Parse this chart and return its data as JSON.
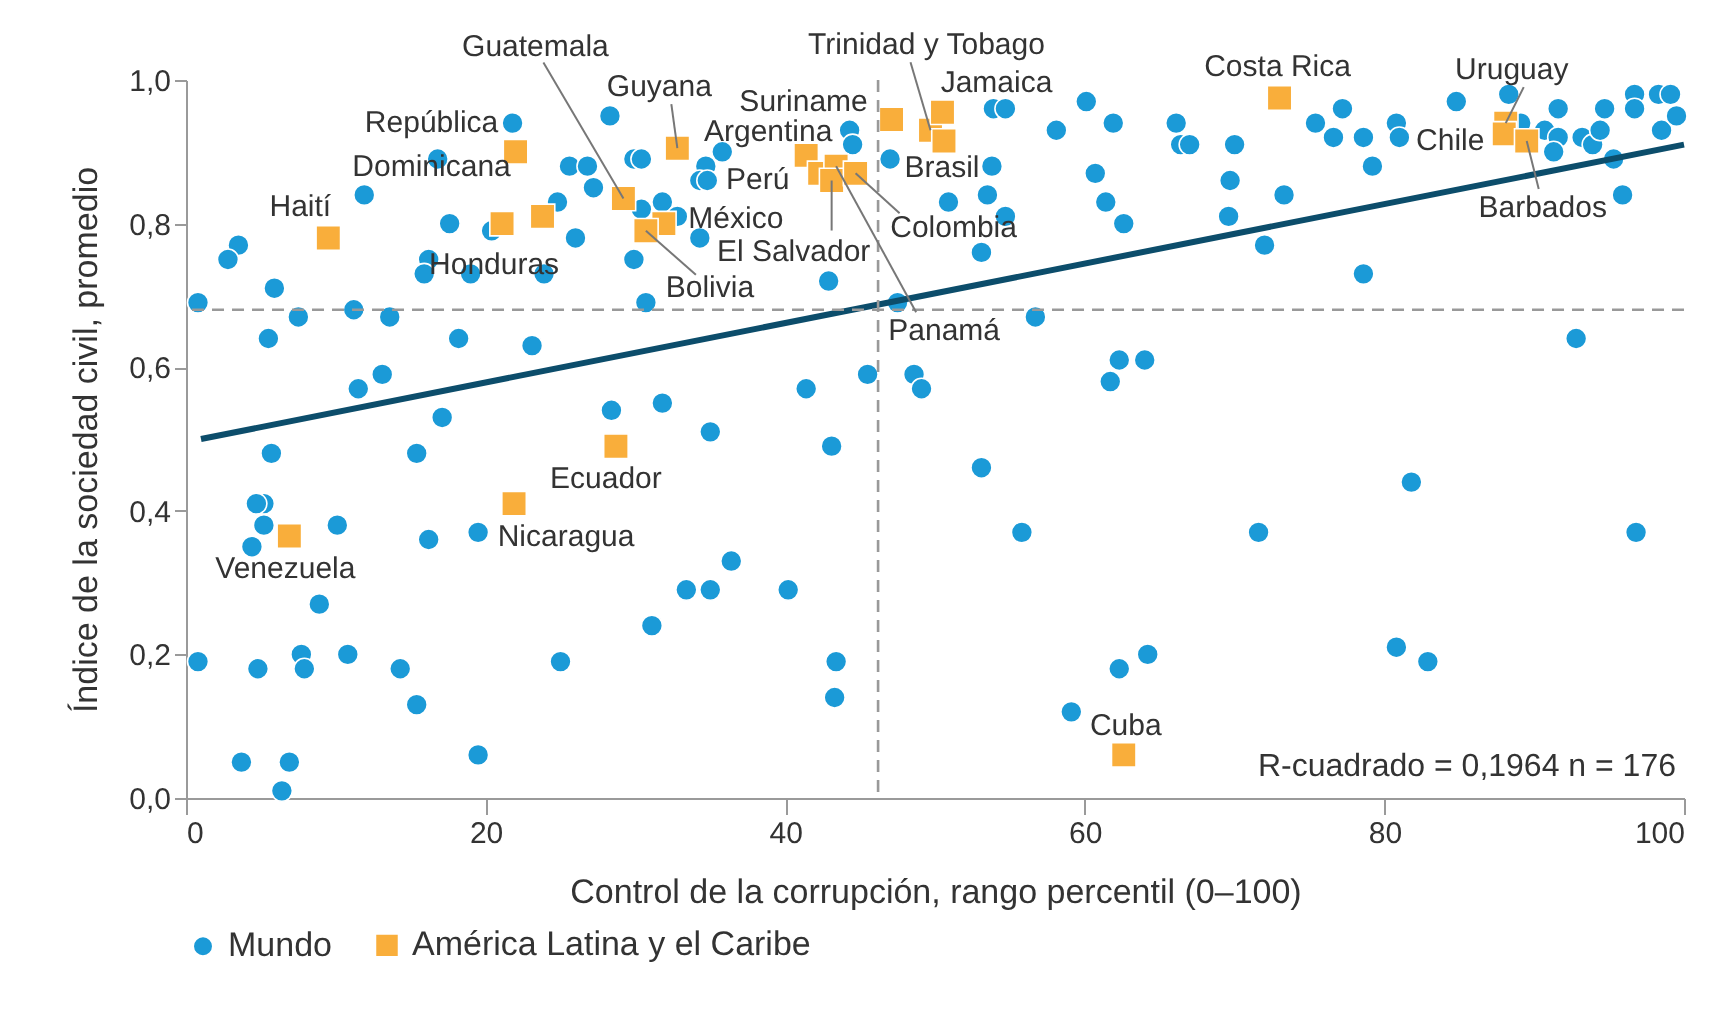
{
  "chart_data": {
    "type": "scatter",
    "xlabel": "Control de la corrupción, rango percentil (0–100)",
    "ylabel": "Índice de la sociedad civil, promedio",
    "xlim": [
      0,
      100
    ],
    "xticks": [
      0,
      20,
      40,
      60,
      80,
      100
    ],
    "ylim": [
      0,
      1
    ],
    "yticks": [
      {
        "value": 0,
        "label": "0,0"
      },
      {
        "value": 0.2,
        "label": "0,2"
      },
      {
        "value": 0.4,
        "label": "0,4"
      },
      {
        "value": 0.6,
        "label": "0,6"
      },
      {
        "value": 0.8,
        "label": "0,8"
      },
      {
        "value": 1,
        "label": "1,0"
      }
    ],
    "grid": false,
    "legend": "bottom",
    "series": [
      {
        "name": "Mundo",
        "marker": "circle",
        "color": "#1b9ad7",
        "x": [
          21.8,
          28.3,
          16.8,
          11.9,
          25.6,
          26.8,
          27.2,
          29.9,
          30.4,
          24.8,
          17.6,
          20.4,
          26.0,
          30.4,
          31.8,
          32.8,
          34.7,
          35.8,
          34.3,
          34.8,
          34.3,
          29.9,
          44.3,
          44.5,
          47.0,
          42.9,
          3.5,
          2.8,
          5.9,
          16.2,
          15.9,
          19.0,
          23.9,
          0.8,
          7.5,
          11.2,
          13.6,
          30.7,
          47.5,
          5.5,
          18.2,
          23.1,
          11.5,
          13.1,
          41.4,
          45.5,
          48.6,
          49.1,
          28.4,
          31.8,
          17.1,
          53.9,
          54.7,
          60.1,
          58.1,
          61.9,
          66.1,
          66.4,
          67.0,
          70.0,
          60.7,
          53.8,
          53.5,
          50.9,
          61.4,
          62.6,
          54.7,
          53.1,
          69.7,
          69.6,
          73.3,
          72.0,
          75.4,
          77.2,
          76.6,
          78.6,
          79.2,
          80.8,
          81.0,
          84.8,
          88.3,
          89.1,
          90.7,
          91.6,
          91.6,
          91.3,
          93.2,
          93.9,
          94.4,
          94.7,
          95.3,
          95.9,
          96.7,
          96.7,
          98.3,
          99.1,
          98.5,
          99.5,
          56.7,
          92.8,
          62.3,
          64.0,
          61.7,
          78.6,
          5.7,
          15.4,
          35.0,
          43.1,
          5.2,
          4.7,
          5.2,
          10.1,
          4.4,
          16.2,
          19.5,
          36.4,
          33.4,
          35.0,
          40.2,
          8.9,
          31.1,
          0.8,
          4.8,
          7.7,
          7.9,
          10.8,
          14.3,
          15.4,
          25.0,
          43.4,
          43.3,
          3.7,
          6.9,
          6.4,
          19.5,
          53.1,
          55.8,
          71.6,
          81.8,
          96.8,
          80.8,
          82.9,
          62.3,
          64.2,
          59.1
        ],
        "values": [
          0.94,
          0.95,
          0.89,
          0.84,
          0.88,
          0.88,
          0.85,
          0.89,
          0.89,
          0.83,
          0.8,
          0.79,
          0.78,
          0.82,
          0.83,
          0.81,
          0.88,
          0.9,
          0.86,
          0.86,
          0.78,
          0.75,
          0.93,
          0.91,
          0.89,
          0.72,
          0.77,
          0.75,
          0.71,
          0.75,
          0.73,
          0.73,
          0.73,
          0.69,
          0.67,
          0.68,
          0.67,
          0.69,
          0.69,
          0.64,
          0.64,
          0.63,
          0.57,
          0.59,
          0.57,
          0.59,
          0.59,
          0.57,
          0.54,
          0.55,
          0.53,
          0.96,
          0.96,
          0.97,
          0.93,
          0.94,
          0.94,
          0.91,
          0.91,
          0.91,
          0.87,
          0.88,
          0.84,
          0.83,
          0.83,
          0.8,
          0.81,
          0.76,
          0.86,
          0.81,
          0.84,
          0.77,
          0.94,
          0.96,
          0.92,
          0.92,
          0.88,
          0.94,
          0.92,
          0.97,
          0.98,
          0.94,
          0.93,
          0.96,
          0.92,
          0.9,
          0.92,
          0.91,
          0.93,
          0.96,
          0.89,
          0.84,
          0.98,
          0.96,
          0.98,
          0.98,
          0.93,
          0.95,
          0.67,
          0.64,
          0.61,
          0.61,
          0.58,
          0.73,
          0.48,
          0.48,
          0.51,
          0.49,
          0.41,
          0.41,
          0.38,
          0.38,
          0.35,
          0.36,
          0.37,
          0.33,
          0.29,
          0.29,
          0.29,
          0.27,
          0.24,
          0.19,
          0.18,
          0.2,
          0.18,
          0.2,
          0.18,
          0.13,
          0.19,
          0.19,
          0.14,
          0.05,
          0.05,
          0.01,
          0.06,
          0.46,
          0.37,
          0.37,
          0.44,
          0.37,
          0.21,
          0.19,
          0.18,
          0.2,
          0.12
        ]
      },
      {
        "name": "América Latina y el Caribe",
        "marker": "square",
        "color": "#f9ae3b",
        "x": [
          9.5,
          22.0,
          21.1,
          23.8,
          29.2,
          32.8,
          31.9,
          30.7,
          41.4,
          42.3,
          43.4,
          43.1,
          44.7,
          47.1,
          49.7,
          50.5,
          50.6,
          73.0,
          88.1,
          88.0,
          89.5,
          28.7,
          21.9,
          6.9,
          62.6
        ],
        "values": [
          0.78,
          0.9,
          0.8,
          0.81,
          0.835,
          0.905,
          0.8,
          0.79,
          0.895,
          0.87,
          0.88,
          0.86,
          0.87,
          0.945,
          0.93,
          0.955,
          0.915,
          0.975,
          0.94,
          0.925,
          0.915,
          0.49,
          0.41,
          0.365,
          0.06
        ]
      },
      {
        "type": "line",
        "color": "#0c4d6b",
        "x": [
          1,
          100
        ],
        "values": [
          0.5,
          0.91
        ]
      }
    ],
    "ref_lines": [
      {
        "axis": "y",
        "value": 0.68,
        "color": "#999999",
        "line_style": "dashed"
      },
      {
        "axis": "x",
        "value": 46.2,
        "color": "#999999",
        "line_style": "dashed"
      }
    ],
    "annotations": [
      {
        "text": "Haití",
        "x": 9.5,
        "y": 0.78
      },
      {
        "text": "República Dominicana",
        "x": 22.0,
        "y": 0.9
      },
      {
        "text": "Honduras",
        "x": 21.1,
        "y": 0.8
      },
      {
        "text": "Guatemala",
        "x": 29.2,
        "y": 0.835
      },
      {
        "text": "Guyana",
        "x": 32.8,
        "y": 0.905
      },
      {
        "text": "México",
        "x": 31.9,
        "y": 0.8
      },
      {
        "text": "Bolivia",
        "x": 30.7,
        "y": 0.79
      },
      {
        "text": "El Salvador",
        "x": 43.1,
        "y": 0.86
      },
      {
        "text": "Argentina",
        "x": 41.4,
        "y": 0.895
      },
      {
        "text": "Perú",
        "x": 42.3,
        "y": 0.87
      },
      {
        "text": "Suriname",
        "x": 47.1,
        "y": 0.945
      },
      {
        "text": "Trinidad y Tobago",
        "x": 49.7,
        "y": 0.93
      },
      {
        "text": "Jamaica",
        "x": 50.5,
        "y": 0.955
      },
      {
        "text": "Brasil",
        "x": 50.6,
        "y": 0.915
      },
      {
        "text": "Colombia",
        "x": 44.7,
        "y": 0.87
      },
      {
        "text": "Panamá",
        "x": 43.4,
        "y": 0.88
      },
      {
        "text": "Costa Rica",
        "x": 73.0,
        "y": 0.975
      },
      {
        "text": "Uruguay",
        "x": 88.1,
        "y": 0.94
      },
      {
        "text": "Chile",
        "x": 88.0,
        "y": 0.925
      },
      {
        "text": "Barbados",
        "x": 89.5,
        "y": 0.915
      },
      {
        "text": "Ecuador",
        "x": 28.7,
        "y": 0.49
      },
      {
        "text": "Nicaragua",
        "x": 21.9,
        "y": 0.41
      },
      {
        "text": "Venezuela",
        "x": 6.9,
        "y": 0.365
      },
      {
        "text": "Cuba",
        "x": 62.6,
        "y": 0.06
      },
      "R-cuadrado = 0,1964 n = 176"
    ]
  }
}
